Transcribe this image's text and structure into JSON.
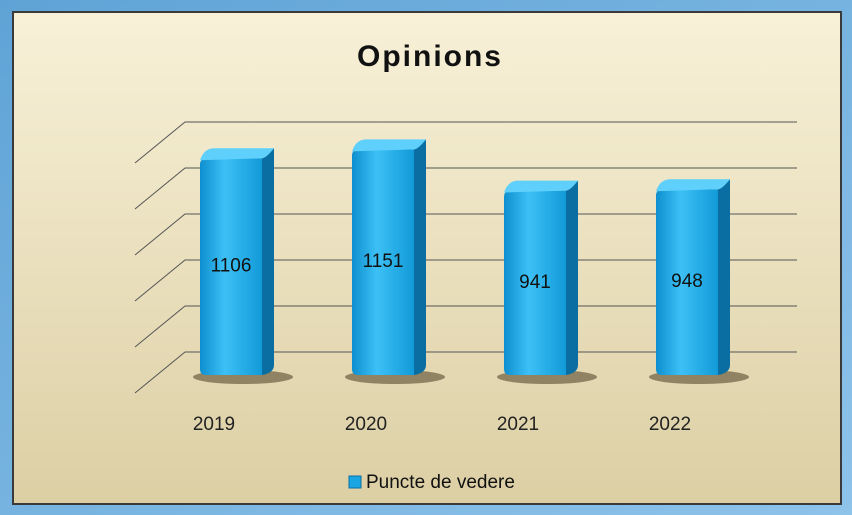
{
  "chart_data": {
    "type": "bar",
    "title": "Opinions",
    "categories": [
      "2019",
      "2020",
      "2021",
      "2022"
    ],
    "series": [
      {
        "name": "Puncte de vedere",
        "color": "#19a6e2",
        "values": [
          1106,
          1151,
          941,
          948
        ]
      }
    ],
    "ylim": [
      0,
      1250
    ],
    "yticks": [
      0,
      250,
      500,
      750,
      1000,
      1250
    ],
    "grid": true,
    "legend": "bottom"
  }
}
